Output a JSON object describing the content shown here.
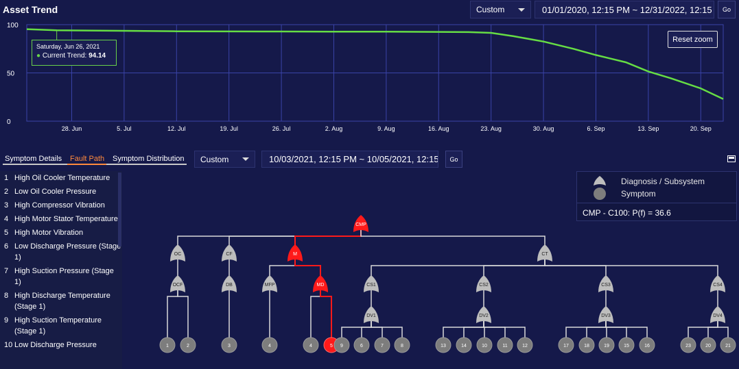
{
  "header": {
    "title": "Asset Trend",
    "range_select": "Custom",
    "date_range": "01/01/2020, 12:15 PM ~ 12/31/2022, 12:15",
    "go_label": "Go"
  },
  "trend_chart": {
    "reset_zoom_label": "Reset zoom",
    "tooltip": {
      "date": "Saturday, Jun 26, 2021",
      "series_label": "Current Trend:",
      "value": "94.14"
    },
    "colors": {
      "line": "#66dd44",
      "grid": "#3a43a8",
      "background": "#15194a"
    }
  },
  "chart_data": {
    "type": "line",
    "title": "",
    "xlabel": "",
    "ylabel": "",
    "ylim": [
      0,
      100
    ],
    "y_ticks": [
      "0",
      "50",
      "100"
    ],
    "x_tick_labels": [
      "28. Jun",
      "5. Jul",
      "12. Jul",
      "19. Jul",
      "26. Jul",
      "2. Aug",
      "9. Aug",
      "16. Aug",
      "23. Aug",
      "30. Aug",
      "6. Sep",
      "13. Sep",
      "20. Sep"
    ],
    "grid": true,
    "series": [
      {
        "name": "Current Trend",
        "x": [
          "2021-06-22",
          "2021-06-26",
          "2021-07-05",
          "2021-07-12",
          "2021-07-19",
          "2021-07-26",
          "2021-08-02",
          "2021-08-09",
          "2021-08-16",
          "2021-08-20",
          "2021-08-23",
          "2021-08-26",
          "2021-08-30",
          "2021-09-03",
          "2021-09-06",
          "2021-09-10",
          "2021-09-13",
          "2021-09-16",
          "2021-09-20",
          "2021-09-23"
        ],
        "y": [
          95.3,
          94.14,
          93.6,
          93.1,
          93.0,
          92.9,
          92.8,
          92.7,
          92.5,
          92.3,
          91.5,
          88.0,
          82.5,
          75.0,
          68.5,
          61.0,
          51.5,
          44.5,
          34.0,
          23.0
        ]
      }
    ]
  },
  "lower_panel": {
    "tabs": [
      "Symptom Details",
      "Fault Path",
      "Symptom Distribution"
    ],
    "range_select": "Custom",
    "date_range": "10/03/2021, 12:15 PM ~ 10/05/2021, 12:15",
    "go_label": "Go"
  },
  "symptoms": [
    {
      "num": "1",
      "text": "High Oil Cooler Temperature"
    },
    {
      "num": "2",
      "text": "Low Oil Cooler Pressure"
    },
    {
      "num": "3",
      "text": "High Compressor Vibration"
    },
    {
      "num": "4",
      "text": "High Motor Stator Temperature"
    },
    {
      "num": "5",
      "text": "High Motor Vibration"
    },
    {
      "num": "6",
      "text": "Low Discharge Pressure (Stage 1)"
    },
    {
      "num": "7",
      "text": "High Suction Pressure (Stage 1)"
    },
    {
      "num": "8",
      "text": "High Discharge Temperature (Stage 1)"
    },
    {
      "num": "9",
      "text": "High Suction Temperature (Stage 1)"
    },
    {
      "num": "10",
      "text": "Low Discharge Pressure"
    }
  ],
  "legend": {
    "diagnosis_label": "Diagnosis / Subsystem",
    "symptom_label": "Symptom",
    "probability_text": "CMP - C100: P(f) = 36.6"
  },
  "fault_tree": {
    "colors": {
      "normal": "#bdbdbd",
      "active": "#ff1a1a",
      "symptom": "#7d7d7d",
      "edge": "#d9d9d9"
    },
    "gates": [
      {
        "id": "CMP",
        "active": true
      },
      {
        "id": "OC",
        "active": false
      },
      {
        "id": "CF",
        "active": false
      },
      {
        "id": "M",
        "active": true
      },
      {
        "id": "CT",
        "active": false
      },
      {
        "id": "OCF",
        "active": false
      },
      {
        "id": "DB",
        "active": false
      },
      {
        "id": "MFP",
        "active": false
      },
      {
        "id": "MD",
        "active": true
      },
      {
        "id": "CS1",
        "active": false
      },
      {
        "id": "CS2",
        "active": false
      },
      {
        "id": "CS3",
        "active": false
      },
      {
        "id": "CS4",
        "active": false
      },
      {
        "id": "DV1",
        "active": false
      },
      {
        "id": "DV2",
        "active": false
      },
      {
        "id": "DV3",
        "active": false
      },
      {
        "id": "DV4",
        "active": false
      }
    ],
    "symptom_nodes": [
      "1",
      "2",
      "3",
      "4",
      "4",
      "5",
      "9",
      "6",
      "7",
      "8",
      "13",
      "14",
      "10",
      "11",
      "12",
      "17",
      "18",
      "19",
      "15",
      "16",
      "23",
      "20",
      "21"
    ],
    "active_symptom": "5"
  }
}
